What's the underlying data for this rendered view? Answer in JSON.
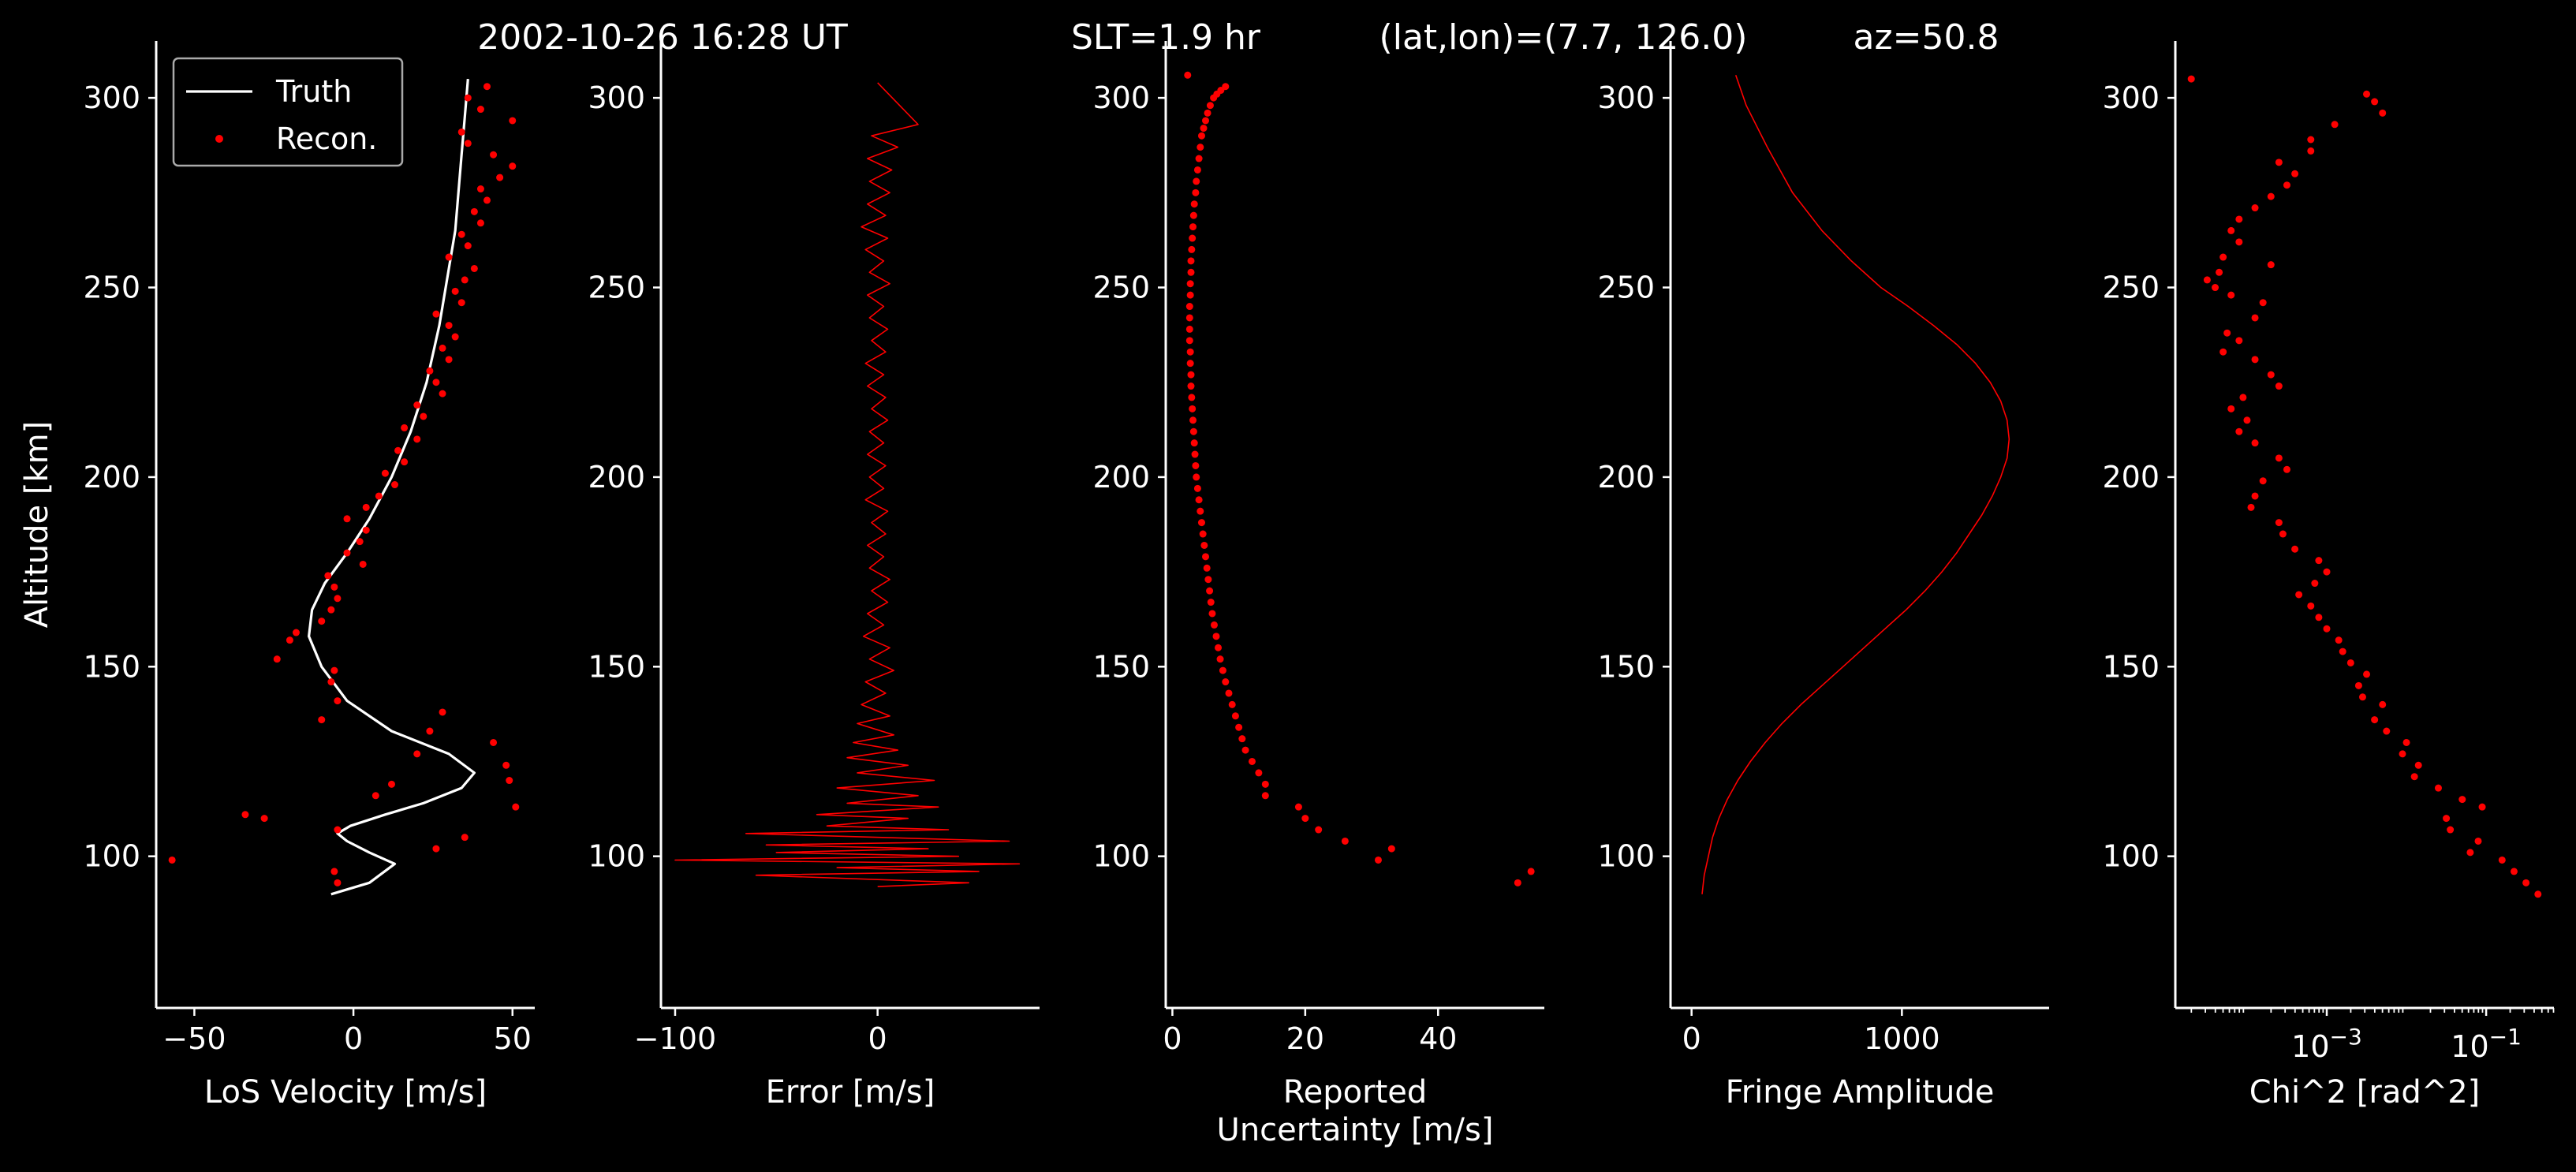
{
  "figure": {
    "title_parts": [
      "2002-10-26 16:28 UT",
      "SLT=1.9 hr",
      "(lat,lon)=(7.7, 126.0)",
      "az=50.8"
    ],
    "shared_ylabel": "Altitude [km]",
    "colors": {
      "background": "#000000",
      "axes": "#ffffff",
      "truth": "#ffffff",
      "recon": "#ff0000"
    }
  },
  "chart_data": [
    {
      "type": "line",
      "xlabel": "LoS Velocity [m/s]",
      "ylabel": "Altitude [km]",
      "xlim": [
        -62,
        57
      ],
      "ylim": [
        60,
        315
      ],
      "xticks": [
        -50,
        0,
        50
      ],
      "yticks": [
        100,
        150,
        200,
        250,
        300
      ],
      "legend": {
        "placement": "top-left",
        "entries": [
          "Truth",
          "Recon."
        ]
      },
      "series": [
        {
          "name": "Truth",
          "style": "line",
          "x": [
            -7,
            5,
            13,
            5,
            -2,
            -5,
            -1,
            10,
            22,
            34,
            38,
            30,
            12,
            -2,
            -10,
            -14,
            -13,
            -9,
            -2,
            5,
            12,
            18,
            23,
            27,
            30,
            32,
            33,
            34,
            35,
            36
          ],
          "y": [
            90,
            93,
            98,
            101,
            104,
            106,
            108,
            111,
            114,
            118,
            122,
            127,
            133,
            141,
            150,
            158,
            165,
            172,
            180,
            189,
            200,
            212,
            225,
            240,
            255,
            265,
            275,
            285,
            295,
            305
          ]
        },
        {
          "name": "Recon.",
          "style": "markers",
          "x": [
            -57,
            -5,
            -6,
            26,
            35,
            -28,
            -5,
            -34,
            7,
            51,
            49,
            48,
            12,
            20,
            44,
            24,
            -10,
            28,
            -5,
            -7,
            -6,
            -24,
            -20,
            -18,
            -10,
            -7,
            -5,
            -6,
            -8,
            3,
            -2,
            2,
            4,
            -2,
            4,
            8,
            13,
            10,
            16,
            14,
            20,
            16,
            22,
            20,
            28,
            26,
            24,
            30,
            28,
            32,
            30,
            26,
            34,
            32,
            35,
            38,
            30,
            36,
            34,
            40,
            38,
            42,
            40,
            46,
            50,
            44,
            36,
            34,
            50,
            40,
            36,
            42
          ],
          "y": [
            99,
            93,
            96,
            102,
            105,
            110,
            107,
            111,
            116,
            113,
            120,
            124,
            119,
            127,
            130,
            133,
            136,
            138,
            141,
            146,
            149,
            152,
            157,
            159,
            162,
            165,
            168,
            171,
            174,
            177,
            180,
            183,
            186,
            189,
            192,
            195,
            198,
            201,
            204,
            207,
            210,
            213,
            216,
            219,
            222,
            225,
            228,
            231,
            234,
            237,
            240,
            243,
            246,
            249,
            252,
            255,
            258,
            261,
            264,
            267,
            270,
            273,
            276,
            279,
            282,
            285,
            288,
            291,
            294,
            297,
            300,
            303
          ]
        }
      ]
    },
    {
      "type": "line",
      "xlabel": "Error [m/s]",
      "xlim": [
        -107,
        80
      ],
      "ylim": [
        60,
        315
      ],
      "xticks": [
        -100,
        0
      ],
      "yticks": [
        100,
        150,
        200,
        250,
        300
      ],
      "series": [
        {
          "style": "line",
          "x": [
            0,
            45,
            -60,
            50,
            -20,
            70,
            -100,
            40,
            -50,
            25,
            -55,
            65,
            -65,
            35,
            -25,
            15,
            -30,
            30,
            -15,
            20,
            -20,
            28,
            -10,
            15,
            -15,
            10,
            -12,
            8,
            -10,
            6,
            -8,
            4,
            -6,
            8,
            -4,
            6,
            -7,
            3,
            -5,
            5,
            -3,
            6,
            -4,
            3,
            -5,
            4,
            -3,
            5,
            -6,
            3,
            -4,
            4,
            -5,
            3,
            -4,
            5,
            -3,
            4,
            -5,
            3,
            -6,
            4,
            -3,
            5,
            -4,
            3,
            -5,
            6,
            -4,
            3,
            -6,
            5,
            -8,
            4,
            -5,
            6,
            -4,
            7,
            -5,
            10,
            -3,
            20,
            0
          ],
          "y": [
            92,
            93,
            95,
            96,
            97,
            98,
            99,
            100,
            101,
            102,
            103,
            104,
            106,
            107,
            108,
            110,
            111,
            113,
            114,
            116,
            118,
            120,
            122,
            124,
            126,
            128,
            130,
            132,
            135,
            137,
            140,
            143,
            146,
            149,
            152,
            155,
            158,
            161,
            164,
            167,
            170,
            173,
            176,
            179,
            182,
            185,
            188,
            191,
            194,
            197,
            200,
            203,
            206,
            209,
            212,
            215,
            218,
            221,
            224,
            227,
            230,
            233,
            236,
            239,
            242,
            245,
            248,
            251,
            254,
            257,
            260,
            263,
            266,
            269,
            272,
            275,
            278,
            281,
            284,
            287,
            290,
            293,
            304
          ]
        }
      ]
    },
    {
      "type": "scatter",
      "xlabel": "Reported\nUncertainty [m/s]",
      "xlim": [
        -1,
        56
      ],
      "ylim": [
        60,
        315
      ],
      "xticks": [
        0,
        20,
        40
      ],
      "yticks": [
        100,
        150,
        200,
        250,
        300
      ],
      "series": [
        {
          "style": "markers",
          "x": [
            54,
            52,
            33,
            31,
            26,
            22,
            20,
            19,
            14,
            14,
            13,
            12,
            11,
            10.5,
            10,
            9.5,
            9,
            8.5,
            8,
            7.6,
            7.2,
            6.9,
            6.6,
            6.3,
            6,
            5.8,
            5.6,
            5.4,
            5.2,
            5,
            4.8,
            4.6,
            4.4,
            4.2,
            4,
            3.8,
            3.6,
            3.5,
            3.4,
            3.3,
            3.2,
            3.1,
            3,
            2.9,
            2.8,
            2.8,
            2.7,
            2.7,
            2.6,
            2.6,
            2.6,
            2.6,
            2.7,
            2.7,
            2.8,
            2.8,
            2.9,
            3,
            3.1,
            3.2,
            3.3,
            3.5,
            3.6,
            3.8,
            4,
            4.2,
            4.4,
            4.7,
            5,
            5.3,
            5.7,
            6.2,
            6.7,
            7.3,
            8,
            2.3
          ],
          "y": [
            96,
            93,
            102,
            99,
            104,
            107,
            110,
            113,
            116,
            119,
            122,
            125,
            128,
            131,
            134,
            137,
            140,
            143,
            146,
            149,
            152,
            155,
            158,
            161,
            164,
            167,
            170,
            173,
            176,
            179,
            182,
            185,
            188,
            191,
            194,
            197,
            200,
            203,
            206,
            209,
            212,
            215,
            218,
            221,
            224,
            227,
            230,
            233,
            236,
            239,
            242,
            245,
            248,
            251,
            254,
            257,
            260,
            263,
            266,
            269,
            272,
            275,
            278,
            281,
            284,
            287,
            290,
            292,
            294,
            296,
            298,
            300,
            301,
            302,
            303,
            306
          ]
        }
      ]
    },
    {
      "type": "line",
      "xlabel": "Fringe Amplitude",
      "xlim": [
        -100,
        1700
      ],
      "ylim": [
        60,
        315
      ],
      "xticks": [
        0,
        1000
      ],
      "yticks": [
        100,
        150,
        200,
        250,
        300
      ],
      "series": [
        {
          "style": "line",
          "x": [
            50,
            60,
            80,
            100,
            130,
            170,
            220,
            280,
            350,
            430,
            520,
            620,
            720,
            820,
            920,
            1020,
            1110,
            1190,
            1260,
            1320,
            1380,
            1430,
            1470,
            1500,
            1510,
            1500,
            1470,
            1420,
            1350,
            1260,
            1150,
            1030,
            900,
            760,
            620,
            480,
            360,
            260,
            210
          ],
          "y": [
            90,
            95,
            100,
            105,
            110,
            115,
            120,
            125,
            130,
            135,
            140,
            145,
            150,
            155,
            160,
            165,
            170,
            175,
            180,
            185,
            190,
            195,
            200,
            205,
            210,
            215,
            220,
            225,
            230,
            235,
            240,
            245,
            250,
            257,
            265,
            275,
            287,
            298,
            306
          ]
        }
      ]
    },
    {
      "type": "scatter",
      "xlabel": "Chi^2 [rad^2]",
      "xlim": [
        -4.9,
        -0.15
      ],
      "ylim": [
        60,
        315
      ],
      "xscale": "log",
      "xticks": [
        -3,
        -1
      ],
      "xticklabels": [
        "10^-3",
        "10^-1"
      ],
      "yticks": [
        100,
        150,
        200,
        250,
        300
      ],
      "series": [
        {
          "style": "markers",
          "x": [
            -0.35,
            -0.5,
            -0.65,
            -0.8,
            -1.2,
            -1.1,
            -1.45,
            -1.5,
            -1.05,
            -1.3,
            -1.6,
            -1.9,
            -1.85,
            -2.05,
            -2.0,
            -2.25,
            -2.4,
            -2.3,
            -2.55,
            -2.6,
            -2.5,
            -2.7,
            -2.8,
            -2.85,
            -3.0,
            -3.1,
            -3.2,
            -3.35,
            -3.15,
            -3.0,
            -3.1,
            -3.4,
            -3.55,
            -3.6,
            -3.95,
            -3.9,
            -3.8,
            -3.5,
            -3.6,
            -3.9,
            -4.1,
            -4.0,
            -4.2,
            -4.05,
            -3.6,
            -3.7,
            -3.9,
            -4.3,
            -4.1,
            -4.25,
            -3.9,
            -3.8,
            -4.2,
            -4.4,
            -4.5,
            -4.35,
            -3.7,
            -4.3,
            -4.1,
            -4.2,
            -4.1,
            -3.9,
            -3.7,
            -3.5,
            -3.4,
            -3.6,
            -3.2,
            -3.2,
            -2.9,
            -2.3,
            -2.4,
            -2.5,
            -4.7
          ],
          "y": [
            90,
            93,
            96,
            99,
            101,
            104,
            107,
            110,
            113,
            115,
            118,
            121,
            124,
            127,
            130,
            133,
            136,
            140,
            142,
            145,
            148,
            151,
            154,
            157,
            160,
            163,
            166,
            169,
            172,
            175,
            178,
            181,
            185,
            188,
            192,
            195,
            199,
            202,
            205,
            209,
            212,
            215,
            218,
            221,
            224,
            227,
            231,
            233,
            236,
            238,
            242,
            246,
            248,
            250,
            252,
            254,
            256,
            258,
            262,
            265,
            268,
            271,
            274,
            277,
            280,
            283,
            286,
            289,
            293,
            296,
            299,
            301,
            305
          ]
        }
      ]
    }
  ]
}
